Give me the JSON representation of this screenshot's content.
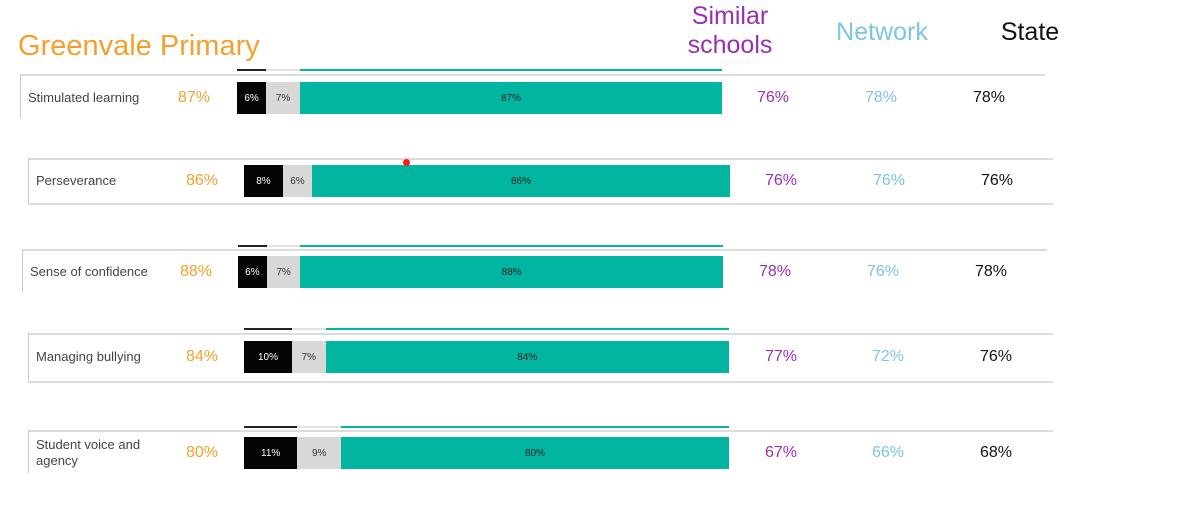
{
  "header": {
    "school": "Greenvale Primary",
    "col_similar": "Similar schools",
    "col_network": "Network",
    "col_state": "State"
  },
  "colors": {
    "school": "#f5a02c",
    "similar": "#9a2fb1",
    "network": "#7ec4e4",
    "state": "#111111",
    "negative": "#050505",
    "neutral": "#d8d8d6",
    "positive": "#01b5a0"
  },
  "chart_data": {
    "type": "bar",
    "stacked": true,
    "orientation": "horizontal",
    "categories": [
      "Stimulated learning",
      "Perseverance",
      "Sense of confidence",
      "Managing bullying",
      "Student voice and agency"
    ],
    "series": [
      {
        "values": [
          6,
          8,
          6,
          10,
          11
        ]
      },
      {
        "values": [
          7,
          6,
          7,
          7,
          9
        ]
      },
      {
        "values": [
          87,
          86,
          88,
          84,
          80
        ]
      }
    ],
    "labels": {
      "negative": [
        "6%",
        "8%",
        "6%",
        "10%",
        "11%"
      ],
      "neutral": [
        "7%",
        "6%",
        "7%",
        "7%",
        "9%"
      ],
      "positive": [
        "87%",
        "86%",
        "88%",
        "84%",
        "80%"
      ]
    },
    "school": [
      "87%",
      "86%",
      "88%",
      "84%",
      "80%"
    ],
    "similar_schools": [
      "76%",
      "76%",
      "78%",
      "77%",
      "67%"
    ],
    "network": [
      "78%",
      "76%",
      "76%",
      "72%",
      "66%"
    ],
    "state": [
      "78%",
      "76%",
      "78%",
      "76%",
      "68%"
    ]
  }
}
